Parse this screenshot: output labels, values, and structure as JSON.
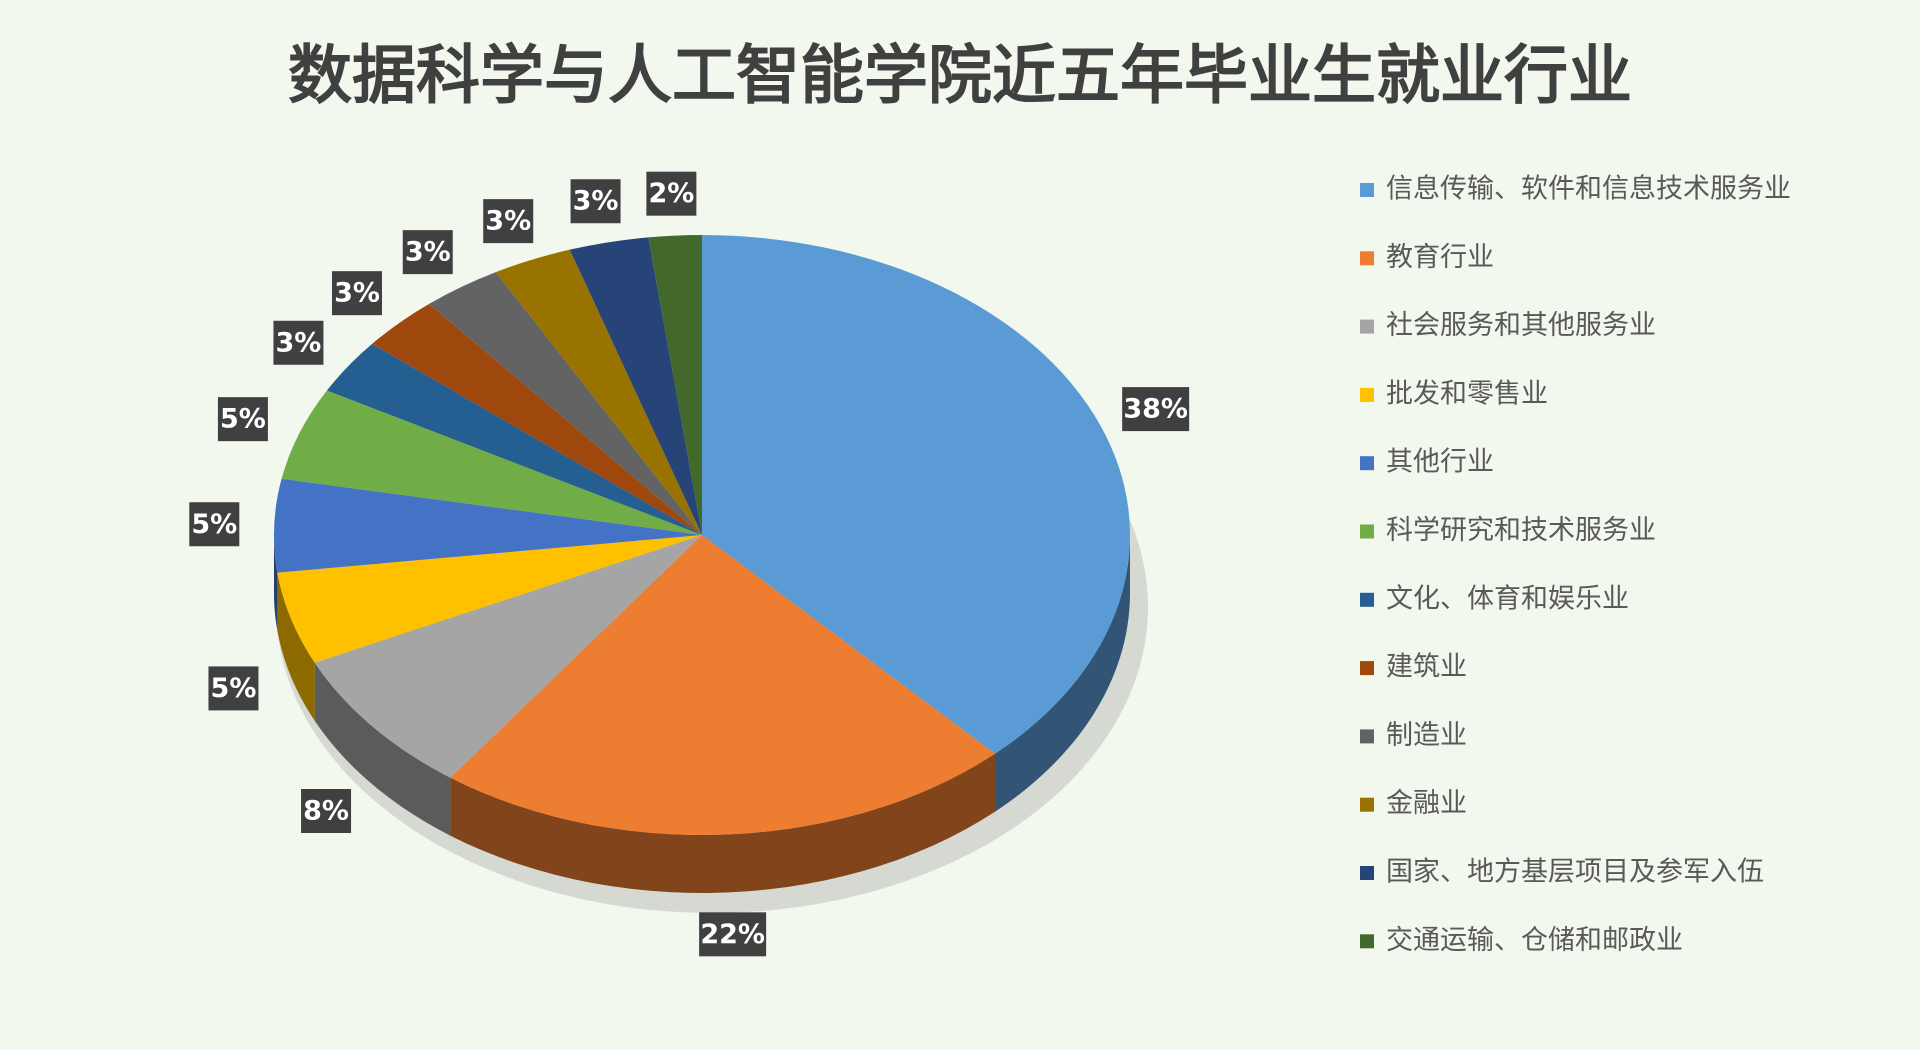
{
  "chart_data": {
    "type": "pie",
    "title": "数据科学与人工智能学院近五年毕业生就业行业",
    "categories": [
      "信息传输、软件和信息技术服务业",
      "教育行业",
      "社会服务和其他服务业",
      "批发和零售业",
      "其他行业",
      "科学研究和技术服务业",
      "文化、体育和娱乐业",
      "建筑业",
      "制造业",
      "金融业",
      "国家、地方基层项目及参军入伍",
      "交通运输、仓储和邮政业"
    ],
    "values": [
      38,
      22,
      8,
      5,
      5,
      5,
      3,
      3,
      3,
      3,
      3,
      2
    ],
    "value_labels": [
      "38%",
      "22%",
      "8%",
      "5%",
      "5%",
      "5%",
      "3%",
      "3%",
      "3%",
      "3%",
      "3%",
      "2%"
    ],
    "colors": [
      "#5B9BD5",
      "#ED7D31",
      "#A5A5A5",
      "#FFC000",
      "#4472C4",
      "#70AD47",
      "#255E91",
      "#9E480E",
      "#636363",
      "#997300",
      "#264478",
      "#43682B"
    ],
    "legend": "right"
  }
}
